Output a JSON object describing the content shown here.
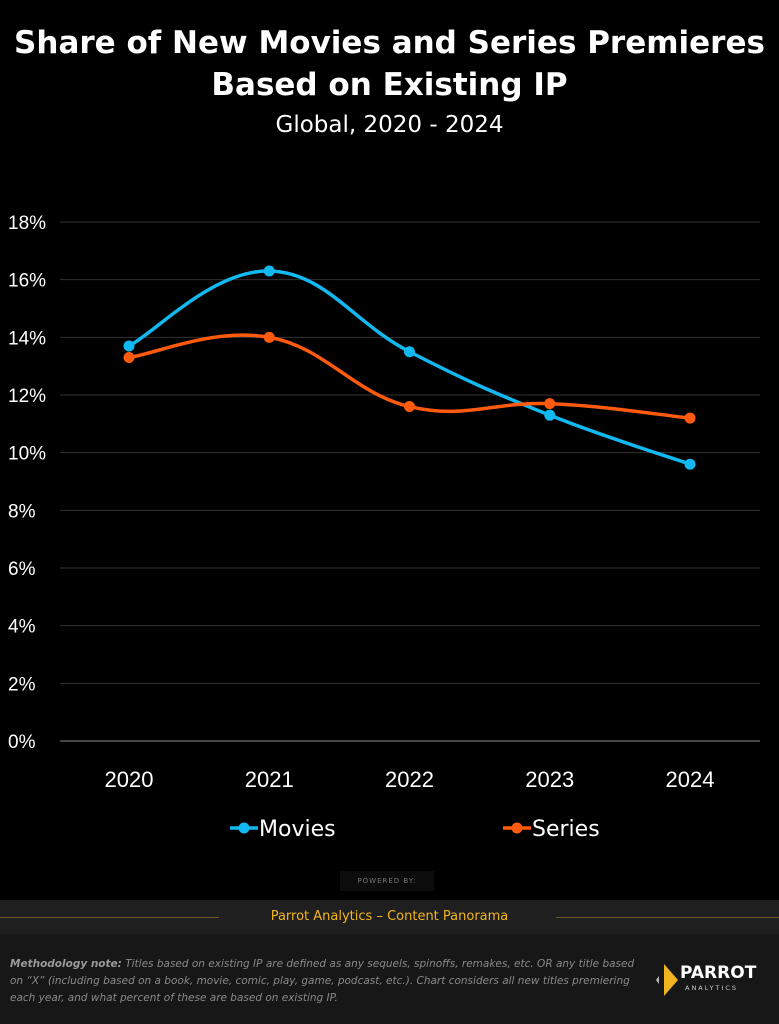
{
  "chart_data": {
    "type": "line",
    "title": "Share of New Movies and Series Premieres Based on Existing IP",
    "subtitle": "Global, 2020 - 2024",
    "categories": [
      "2020",
      "2021",
      "2022",
      "2023",
      "2024"
    ],
    "series": [
      {
        "name": "Movies",
        "color": "#12b8f0",
        "values": [
          13.7,
          16.3,
          13.5,
          11.3,
          9.6
        ]
      },
      {
        "name": "Series",
        "color": "#ff5a0e",
        "values": [
          13.3,
          14.0,
          11.6,
          11.7,
          11.2
        ]
      }
    ],
    "ylim": [
      0,
      18
    ],
    "yticks": [
      "0%",
      "2%",
      "4%",
      "6%",
      "8%",
      "10%",
      "12%",
      "14%",
      "16%",
      "18%"
    ],
    "legend": "bottom",
    "grid": true
  },
  "title_line1": "Share of New Movies and Series Premieres",
  "title_line2": "Based on Existing IP",
  "subtitle": "Global, 2020 - 2024",
  "powered_by": "POWERED BY:",
  "band_text": "Parrot Analytics – Content Panorama",
  "note_label": "Methodology note:",
  "note_text": " Titles based on existing IP are defined as any sequels, spinoffs, remakes, etc. OR any title based on “X” (including based on a book, movie, comic, play, game, podcast, etc.).  Chart considers all new titles premiering each year, and what percent of these are based on existing IP.",
  "logo": {
    "name": "PARROT",
    "sub": "ANALYTICS"
  }
}
